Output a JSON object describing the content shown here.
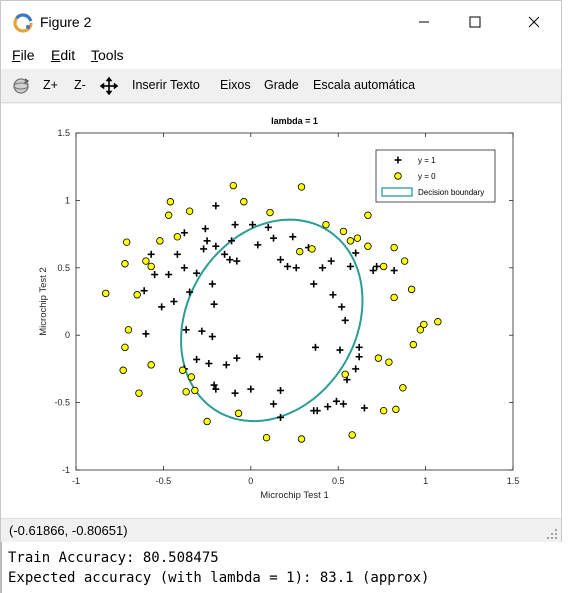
{
  "window": {
    "title": "Figure 2",
    "icons": {
      "app": "octave-logo-icon",
      "minimize": "minimize-icon",
      "maximize": "maximize-icon",
      "close": "close-icon"
    }
  },
  "menu": {
    "file": {
      "accel": "F",
      "rest": "ile"
    },
    "edit": {
      "accel": "E",
      "rest": "dit"
    },
    "tools": {
      "accel": "T",
      "rest": "ools"
    }
  },
  "toolbar": {
    "rotate_icon": "rotate-3d-icon",
    "zoom_in": "Z+",
    "zoom_out": "Z-",
    "pan_icon": "pan-move-icon",
    "insert_text": "Inserir Texto",
    "axes": "Eixos",
    "grid": "Grade",
    "autoscale": "Escala automática"
  },
  "status": {
    "coordinates": "(-0.61866, -0.80651)"
  },
  "console": {
    "line1": "Train Accuracy: 80.508475",
    "line2": "Expected accuracy (with lambda = 1): 83.1 (approx)"
  },
  "chart_data": {
    "type": "scatter",
    "title": "lambda = 1",
    "xlabel": "Microchip Test 1",
    "ylabel": "Microchip Test 2",
    "xlim": [
      -1,
      1.5
    ],
    "ylim": [
      -1,
      1.5
    ],
    "xticks": [
      -1,
      -0.5,
      0,
      0.5,
      1,
      1.5
    ],
    "yticks": [
      -1,
      -0.5,
      0,
      0.5,
      1,
      1.5
    ],
    "xtick_labels": [
      "-1",
      "-0.5",
      "0",
      "0.5",
      "1",
      "1.5"
    ],
    "ytick_labels": [
      "-1",
      "-0.5",
      "0",
      "0.5",
      "1",
      "1.5"
    ],
    "grid": false,
    "legend_position": "top-right",
    "legend": [
      {
        "label": "y = 1",
        "marker": "plus"
      },
      {
        "label": "y = 0",
        "marker": "circle"
      },
      {
        "label": "Decision boundary",
        "marker": "line"
      }
    ],
    "colors": {
      "positive": "#000000",
      "negative_fill": "#ffff00",
      "negative_edge": "#000000",
      "boundary": "#2a9d96"
    },
    "series": [
      {
        "name": "y = 1",
        "marker": "plus",
        "points": [
          [
            -0.09,
            0.82
          ],
          [
            -0.26,
            0.79
          ],
          [
            -0.38,
            0.76
          ],
          [
            -0.2,
            0.96
          ],
          [
            0.01,
            0.82
          ],
          [
            -0.11,
            0.7
          ],
          [
            -0.25,
            0.7
          ],
          [
            -0.27,
            0.64
          ],
          [
            -0.15,
            0.6
          ],
          [
            -0.12,
            0.56
          ],
          [
            -0.08,
            0.55
          ],
          [
            -0.2,
            0.66
          ],
          [
            0.1,
            0.8
          ],
          [
            0.13,
            0.72
          ],
          [
            0.24,
            0.73
          ],
          [
            0.33,
            0.65
          ],
          [
            0.17,
            0.56
          ],
          [
            0.21,
            0.51
          ],
          [
            0.26,
            0.5
          ],
          [
            0.04,
            0.67
          ],
          [
            -0.42,
            0.6
          ],
          [
            -0.57,
            0.6
          ],
          [
            -0.55,
            0.45
          ],
          [
            -0.47,
            0.45
          ],
          [
            -0.38,
            0.5
          ],
          [
            -0.31,
            0.46
          ],
          [
            -0.22,
            0.38
          ],
          [
            -0.35,
            0.32
          ],
          [
            -0.44,
            0.25
          ],
          [
            -0.51,
            0.21
          ],
          [
            -0.61,
            0.33
          ],
          [
            -0.21,
            0.23
          ],
          [
            -0.37,
            0.04
          ],
          [
            -0.28,
            0.03
          ],
          [
            -0.6,
            0.01
          ],
          [
            -0.22,
            -0.01
          ],
          [
            -0.31,
            -0.18
          ],
          [
            -0.24,
            -0.21
          ],
          [
            -0.14,
            -0.22
          ],
          [
            -0.08,
            -0.17
          ],
          [
            0.05,
            -0.16
          ],
          [
            -0.38,
            -0.25
          ],
          [
            -0.2,
            -0.4
          ],
          [
            -0.21,
            -0.37
          ],
          [
            -0.09,
            -0.43
          ],
          [
            0.0,
            -0.4
          ],
          [
            0.13,
            -0.51
          ],
          [
            0.17,
            -0.61
          ],
          [
            0.17,
            -0.41
          ],
          [
            0.36,
            -0.56
          ],
          [
            0.38,
            -0.56
          ],
          [
            0.44,
            -0.53
          ],
          [
            0.49,
            -0.49
          ],
          [
            0.53,
            -0.51
          ],
          [
            0.65,
            -0.54
          ],
          [
            0.6,
            -0.25
          ],
          [
            0.62,
            -0.16
          ],
          [
            0.62,
            -0.09
          ],
          [
            0.54,
            0.11
          ],
          [
            0.57,
            0.51
          ],
          [
            0.6,
            0.61
          ],
          [
            0.7,
            0.48
          ],
          [
            0.72,
            0.51
          ],
          [
            0.82,
            0.48
          ],
          [
            0.52,
            0.21
          ],
          [
            0.47,
            0.3
          ],
          [
            0.41,
            0.5
          ],
          [
            0.36,
            0.38
          ],
          [
            0.46,
            0.55
          ],
          [
            0.37,
            -0.09
          ],
          [
            0.51,
            -0.11
          ],
          [
            0.55,
            -0.33
          ]
        ]
      },
      {
        "name": "y = 0",
        "marker": "circle",
        "points": [
          [
            -0.83,
            0.31
          ],
          [
            -0.72,
            0.53
          ],
          [
            -0.71,
            0.69
          ],
          [
            -0.6,
            0.55
          ],
          [
            -0.52,
            0.7
          ],
          [
            -0.47,
            0.89
          ],
          [
            -0.46,
            0.99
          ],
          [
            -0.35,
            0.92
          ],
          [
            -0.1,
            1.11
          ],
          [
            -0.04,
            0.99
          ],
          [
            0.11,
            0.91
          ],
          [
            0.29,
            1.1
          ],
          [
            0.43,
            0.82
          ],
          [
            0.53,
            0.77
          ],
          [
            0.61,
            0.72
          ],
          [
            0.67,
            0.89
          ],
          [
            0.67,
            0.66
          ],
          [
            0.82,
            0.65
          ],
          [
            0.88,
            0.55
          ],
          [
            0.92,
            0.34
          ],
          [
            0.82,
            0.28
          ],
          [
            0.99,
            0.08
          ],
          [
            1.07,
            0.1
          ],
          [
            0.97,
            0.04
          ],
          [
            0.93,
            -0.07
          ],
          [
            0.79,
            -0.2
          ],
          [
            0.87,
            -0.39
          ],
          [
            0.83,
            -0.55
          ],
          [
            0.76,
            -0.56
          ],
          [
            0.58,
            -0.74
          ],
          [
            0.29,
            -0.77
          ],
          [
            0.09,
            -0.76
          ],
          [
            -0.07,
            -0.58
          ],
          [
            -0.25,
            -0.64
          ],
          [
            -0.34,
            -0.31
          ],
          [
            -0.37,
            -0.42
          ],
          [
            -0.39,
            -0.26
          ],
          [
            -0.57,
            -0.22
          ],
          [
            -0.64,
            -0.43
          ],
          [
            -0.73,
            -0.26
          ],
          [
            -0.72,
            -0.09
          ],
          [
            -0.7,
            0.04
          ],
          [
            -0.65,
            0.3
          ],
          [
            -0.57,
            0.51
          ],
          [
            -0.42,
            0.73
          ],
          [
            0.28,
            0.62
          ],
          [
            0.54,
            -0.29
          ],
          [
            0.76,
            0.51
          ],
          [
            0.73,
            -0.17
          ],
          [
            -0.32,
            -0.41
          ],
          [
            0.35,
            0.64
          ],
          [
            0.57,
            0.7
          ]
        ]
      }
    ],
    "decision_boundary": {
      "center": [
        0.12,
        0.11
      ],
      "semi_axes": [
        0.5,
        0.76
      ],
      "rotation_deg": 14
    }
  }
}
